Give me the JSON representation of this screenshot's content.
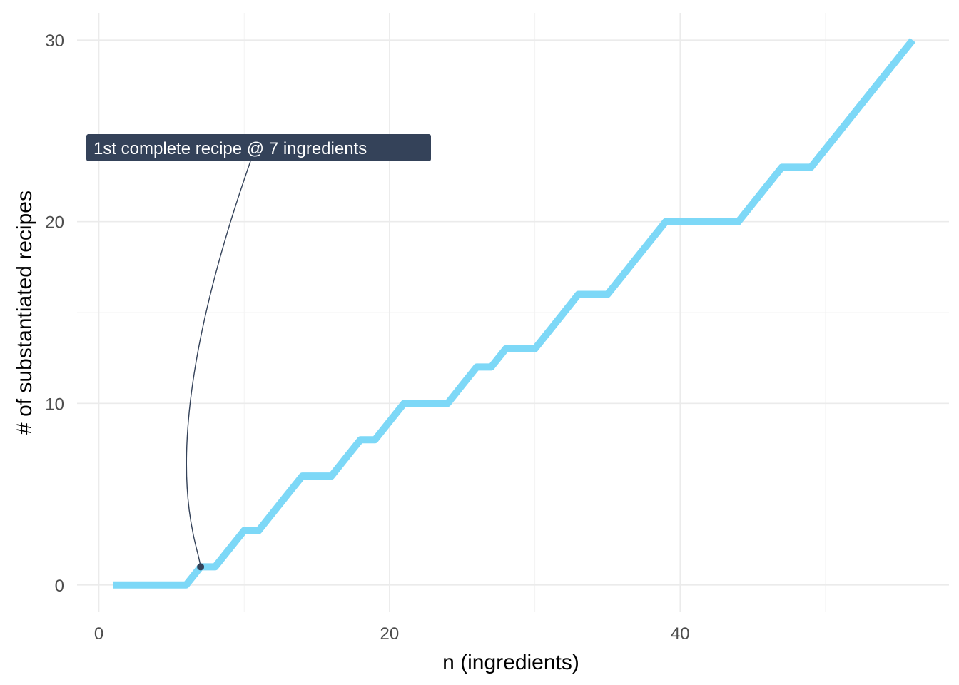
{
  "chart_data": {
    "type": "line",
    "title": "",
    "xlabel": "n (ingredients)",
    "ylabel": "# of substantiated recipes",
    "xlim": [
      -1.5,
      58.5
    ],
    "ylim": [
      -1.5,
      31.5
    ],
    "x_ticks": [
      0,
      20,
      40
    ],
    "y_ticks": [
      0,
      10,
      20,
      30
    ],
    "x_minor": [
      10,
      30,
      50
    ],
    "y_minor": [
      5,
      15,
      25
    ],
    "grid": true,
    "line_color": "#7dd8f7",
    "series": [
      {
        "x": [
          1,
          2,
          3,
          4,
          5,
          6,
          7,
          8,
          9,
          10,
          11,
          12,
          13,
          14,
          15,
          16,
          17,
          18,
          19,
          20,
          21,
          22,
          23,
          24,
          25,
          26,
          27,
          28,
          29,
          30,
          31,
          32,
          33,
          34,
          35,
          36,
          37,
          38,
          39,
          40,
          41,
          42,
          43,
          44,
          45,
          46,
          47,
          48,
          49,
          50,
          51,
          52,
          53,
          54,
          55,
          56
        ],
        "values": [
          0,
          0,
          0,
          0,
          0,
          0,
          1,
          1,
          2,
          3,
          3,
          4,
          5,
          6,
          6,
          6,
          7,
          8,
          8,
          9,
          10,
          10,
          10,
          10,
          11,
          12,
          12,
          13,
          13,
          13,
          14,
          15,
          16,
          16,
          16,
          17,
          18,
          19,
          20,
          20,
          20,
          20,
          20,
          20,
          21,
          22,
          23,
          23,
          23,
          24,
          25,
          26,
          27,
          28,
          29,
          30
        ]
      }
    ],
    "annotation": {
      "text": "1st complete recipe @ 7 ingredients",
      "x": 7,
      "y": 1,
      "label_color": "#344259"
    }
  }
}
